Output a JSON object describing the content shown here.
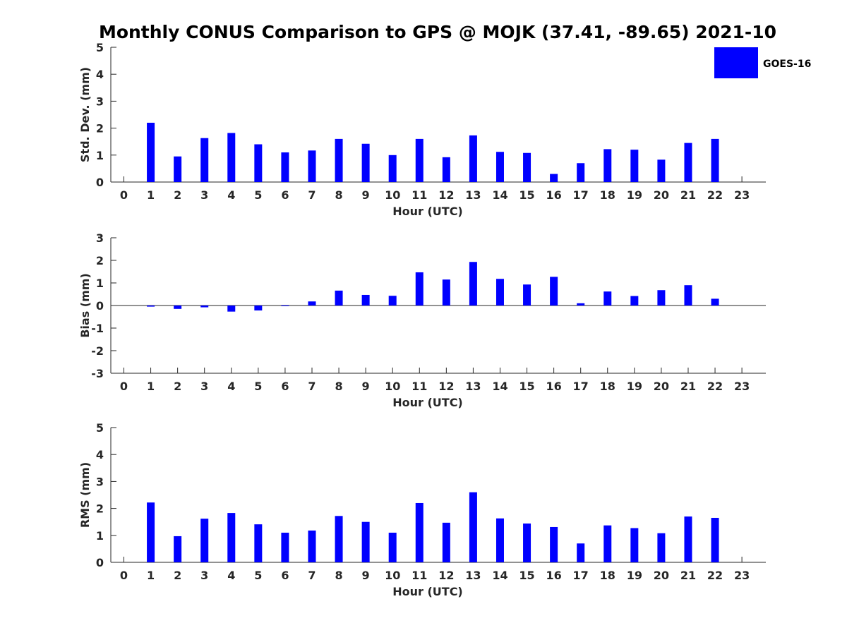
{
  "title": "Monthly CONUS Comparison to GPS @ MOJK (37.41, -89.65) 2021-10",
  "legend": {
    "label": "GOES-16",
    "color": "#0000ff",
    "placement": "top-right"
  },
  "chart_data": [
    {
      "type": "bar",
      "xlabel": "Hour (UTC)",
      "ylabel": "Std. Dev. (mm)",
      "ylim": [
        0,
        5
      ],
      "yticks": [
        0,
        1,
        2,
        3,
        4,
        5
      ],
      "categories": [
        "0",
        "1",
        "2",
        "3",
        "4",
        "5",
        "6",
        "7",
        "8",
        "9",
        "10",
        "11",
        "12",
        "13",
        "14",
        "15",
        "16",
        "17",
        "18",
        "19",
        "20",
        "21",
        "22",
        "23"
      ],
      "series": [
        {
          "name": "GOES-16",
          "values": [
            null,
            2.2,
            0.95,
            1.63,
            1.82,
            1.4,
            1.1,
            1.17,
            1.6,
            1.42,
            1.0,
            1.6,
            0.92,
            1.73,
            1.12,
            1.08,
            0.3,
            0.7,
            1.22,
            1.2,
            0.83,
            1.45,
            1.6,
            null
          ]
        }
      ],
      "grid": false
    },
    {
      "type": "bar",
      "xlabel": "Hour (UTC)",
      "ylabel": "Bias (mm)",
      "ylim": [
        -3,
        3
      ],
      "yticks": [
        -3,
        -2,
        -1,
        0,
        1,
        2,
        3
      ],
      "categories": [
        "0",
        "1",
        "2",
        "3",
        "4",
        "5",
        "6",
        "7",
        "8",
        "9",
        "10",
        "11",
        "12",
        "13",
        "14",
        "15",
        "16",
        "17",
        "18",
        "19",
        "20",
        "21",
        "22",
        "23"
      ],
      "series": [
        {
          "name": "GOES-16",
          "values": [
            null,
            -0.05,
            -0.15,
            -0.08,
            -0.27,
            -0.22,
            -0.02,
            0.18,
            0.66,
            0.47,
            0.43,
            1.47,
            1.15,
            1.93,
            1.18,
            0.93,
            1.27,
            0.1,
            0.62,
            0.42,
            0.68,
            0.9,
            0.3,
            null
          ]
        }
      ],
      "grid": false
    },
    {
      "type": "bar",
      "xlabel": "Hour (UTC)",
      "ylabel": "RMS (mm)",
      "ylim": [
        0,
        5
      ],
      "yticks": [
        0,
        1,
        2,
        3,
        4,
        5
      ],
      "categories": [
        "0",
        "1",
        "2",
        "3",
        "4",
        "5",
        "6",
        "7",
        "8",
        "9",
        "10",
        "11",
        "12",
        "13",
        "14",
        "15",
        "16",
        "17",
        "18",
        "19",
        "20",
        "21",
        "22",
        "23"
      ],
      "series": [
        {
          "name": "GOES-16",
          "values": [
            null,
            2.22,
            0.97,
            1.62,
            1.83,
            1.41,
            1.1,
            1.18,
            1.72,
            1.5,
            1.1,
            2.2,
            1.47,
            2.6,
            1.63,
            1.44,
            1.31,
            0.7,
            1.37,
            1.27,
            1.08,
            1.7,
            1.65,
            null
          ]
        }
      ],
      "grid": false
    }
  ]
}
